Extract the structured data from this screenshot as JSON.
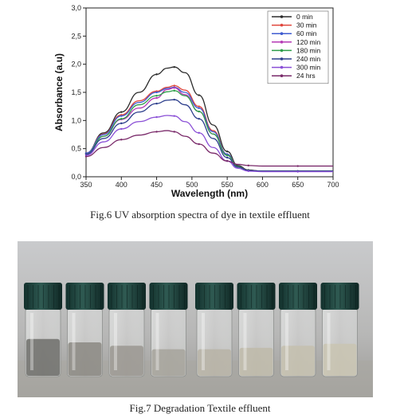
{
  "figure6": {
    "caption": "Fig.6 UV absorption spectra of dye in textile effluent",
    "chart_data": {
      "type": "line",
      "title": "",
      "xlabel": "Wavelength (nm)",
      "ylabel": "Absorbance (a.u)",
      "xlim": [
        350,
        700
      ],
      "ylim": [
        0.0,
        3.0
      ],
      "xticks": [
        "350",
        "400",
        "450",
        "500",
        "550",
        "600",
        "650",
        "700"
      ],
      "yticks": [
        "0,0",
        "0,5",
        "1,0",
        "1,5",
        "2,0",
        "2,5",
        "3,0"
      ],
      "legend_position": "top-right",
      "grid": false,
      "x": [
        350,
        375,
        400,
        425,
        450,
        465,
        475,
        490,
        510,
        530,
        550,
        565,
        580,
        600,
        650,
        700
      ],
      "series": [
        {
          "name": "0 min",
          "color": "#2b2b2b",
          "values": [
            0.42,
            0.78,
            1.15,
            1.5,
            1.82,
            1.93,
            1.95,
            1.85,
            1.45,
            0.92,
            0.45,
            0.2,
            0.12,
            0.1,
            0.1,
            0.1
          ]
        },
        {
          "name": "30 min",
          "color": "#e0463c",
          "values": [
            0.42,
            0.76,
            1.1,
            1.35,
            1.52,
            1.59,
            1.62,
            1.54,
            1.25,
            0.82,
            0.4,
            0.18,
            0.11,
            0.1,
            0.1,
            0.1
          ]
        },
        {
          "name": "60 min",
          "color": "#3f5bd0",
          "values": [
            0.42,
            0.75,
            1.08,
            1.32,
            1.5,
            1.57,
            1.59,
            1.5,
            1.22,
            0.8,
            0.4,
            0.18,
            0.11,
            0.1,
            0.1,
            0.1
          ]
        },
        {
          "name": "120 min",
          "color": "#b53ab5",
          "values": [
            0.4,
            0.72,
            1.02,
            1.22,
            1.4,
            1.55,
            1.58,
            1.46,
            1.16,
            0.76,
            0.38,
            0.18,
            0.11,
            0.1,
            0.1,
            0.1
          ]
        },
        {
          "name": "180 min",
          "color": "#2e9e4a",
          "values": [
            0.4,
            0.72,
            1.03,
            1.28,
            1.44,
            1.51,
            1.53,
            1.44,
            1.16,
            0.76,
            0.38,
            0.18,
            0.11,
            0.1,
            0.1,
            0.1
          ]
        },
        {
          "name": "240 min",
          "color": "#2c3e8c",
          "values": [
            0.4,
            0.68,
            0.95,
            1.15,
            1.3,
            1.36,
            1.37,
            1.28,
            1.03,
            0.68,
            0.34,
            0.17,
            0.11,
            0.1,
            0.1,
            0.1
          ]
        },
        {
          "name": "300 min",
          "color": "#8a4fd6",
          "values": [
            0.38,
            0.62,
            0.85,
            0.98,
            1.06,
            1.09,
            1.08,
            0.98,
            0.78,
            0.52,
            0.28,
            0.15,
            0.1,
            0.09,
            0.09,
            0.09
          ]
        },
        {
          "name": "24 hrs",
          "color": "#7a2a6a",
          "values": [
            0.36,
            0.52,
            0.66,
            0.74,
            0.8,
            0.82,
            0.8,
            0.72,
            0.58,
            0.42,
            0.28,
            0.22,
            0.2,
            0.19,
            0.19,
            0.19
          ]
        }
      ]
    }
  },
  "figure7": {
    "caption": "Fig.7 Degradation Textile effluent",
    "vials": [
      {
        "liquid": "#6f6f6b",
        "fill": 0.55
      },
      {
        "liquid": "#8b8882",
        "fill": 0.5
      },
      {
        "liquid": "#9a9791",
        "fill": 0.45
      },
      {
        "liquid": "#a6a39b",
        "fill": 0.4
      },
      {
        "liquid": "#b7b3a6",
        "fill": 0.4
      },
      {
        "liquid": "#bebaa9",
        "fill": 0.42
      },
      {
        "liquid": "#c4bfae",
        "fill": 0.45
      },
      {
        "liquid": "#c9c4b2",
        "fill": 0.48
      }
    ]
  }
}
